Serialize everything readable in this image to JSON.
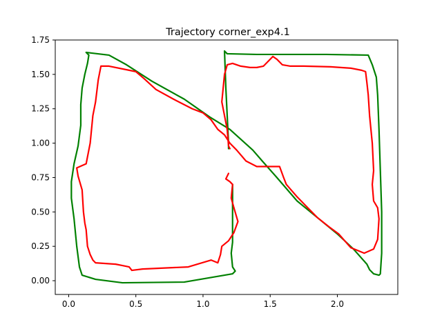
{
  "chart_data": {
    "type": "line",
    "title": "Trajectory corner_exp4.1",
    "xlabel": "",
    "ylabel": "",
    "xlim": [
      -0.1,
      2.45
    ],
    "ylim": [
      -0.1,
      1.75
    ],
    "xticks": [
      0.0,
      0.5,
      1.0,
      1.5,
      2.0
    ],
    "xtick_labels": [
      "0.0",
      "0.5",
      "1.0",
      "1.5",
      "2.0"
    ],
    "yticks": [
      0.0,
      0.25,
      0.5,
      0.75,
      1.0,
      1.25,
      1.5,
      1.75
    ],
    "ytick_labels": [
      "0.00",
      "0.25",
      "0.50",
      "0.75",
      "1.00",
      "1.25",
      "1.50",
      "1.75"
    ],
    "grid": false,
    "series": [
      {
        "color": "#008000",
        "points": [
          [
            1.22,
            0.7
          ],
          [
            1.22,
            0.28
          ],
          [
            1.21,
            0.2
          ],
          [
            1.22,
            0.1
          ],
          [
            1.24,
            0.07
          ],
          [
            1.22,
            0.05
          ],
          [
            0.86,
            -0.01
          ],
          [
            0.4,
            -0.015
          ],
          [
            0.2,
            0.01
          ],
          [
            0.1,
            0.04
          ],
          [
            0.08,
            0.1
          ],
          [
            0.06,
            0.25
          ],
          [
            0.04,
            0.45
          ],
          [
            0.02,
            0.6
          ],
          [
            0.02,
            0.72
          ],
          [
            0.04,
            0.85
          ],
          [
            0.07,
            0.98
          ],
          [
            0.09,
            1.13
          ],
          [
            0.09,
            1.28
          ],
          [
            0.1,
            1.4
          ],
          [
            0.12,
            1.5
          ],
          [
            0.14,
            1.58
          ],
          [
            0.15,
            1.64
          ],
          [
            0.13,
            1.66
          ],
          [
            0.17,
            1.655
          ],
          [
            0.3,
            1.64
          ],
          [
            0.43,
            1.57
          ],
          [
            0.62,
            1.45
          ],
          [
            0.86,
            1.32
          ],
          [
            1.05,
            1.19
          ],
          [
            1.2,
            1.1
          ],
          [
            1.37,
            0.95
          ],
          [
            1.45,
            0.86
          ],
          [
            1.55,
            0.75
          ],
          [
            1.7,
            0.58
          ],
          [
            1.85,
            0.46
          ],
          [
            2.0,
            0.34
          ],
          [
            2.12,
            0.23
          ],
          [
            2.22,
            0.12
          ],
          [
            2.24,
            0.08
          ],
          [
            2.27,
            0.05
          ],
          [
            2.31,
            0.04
          ],
          [
            2.32,
            0.05
          ],
          [
            2.33,
            0.2
          ],
          [
            2.33,
            0.5
          ],
          [
            2.32,
            0.8
          ],
          [
            2.31,
            1.1
          ],
          [
            2.3,
            1.35
          ],
          [
            2.29,
            1.48
          ],
          [
            2.26,
            1.57
          ],
          [
            2.23,
            1.64
          ],
          [
            1.92,
            1.645
          ],
          [
            1.4,
            1.645
          ],
          [
            1.18,
            1.65
          ],
          [
            1.16,
            1.67
          ],
          [
            1.17,
            1.4
          ],
          [
            1.18,
            1.2
          ],
          [
            1.19,
            1.0
          ],
          [
            1.19,
            0.96
          ]
        ]
      },
      {
        "color": "#ff0000",
        "points": [
          [
            1.22,
            0.7
          ],
          [
            1.21,
            0.6
          ],
          [
            1.23,
            0.53
          ],
          [
            1.26,
            0.43
          ],
          [
            1.23,
            0.35
          ],
          [
            1.19,
            0.29
          ],
          [
            1.14,
            0.25
          ],
          [
            1.13,
            0.19
          ],
          [
            1.11,
            0.13
          ],
          [
            1.06,
            0.15
          ],
          [
            0.89,
            0.1
          ],
          [
            0.55,
            0.085
          ],
          [
            0.47,
            0.075
          ],
          [
            0.45,
            0.1
          ],
          [
            0.4,
            0.11
          ],
          [
            0.35,
            0.12
          ],
          [
            0.2,
            0.13
          ],
          [
            0.18,
            0.15
          ],
          [
            0.16,
            0.19
          ],
          [
            0.14,
            0.25
          ],
          [
            0.13,
            0.37
          ],
          [
            0.12,
            0.42
          ],
          [
            0.11,
            0.5
          ],
          [
            0.1,
            0.66
          ],
          [
            0.07,
            0.76
          ],
          [
            0.06,
            0.82
          ],
          [
            0.13,
            0.85
          ],
          [
            0.16,
            1.0
          ],
          [
            0.18,
            1.2
          ],
          [
            0.2,
            1.3
          ],
          [
            0.22,
            1.46
          ],
          [
            0.24,
            1.56
          ],
          [
            0.3,
            1.56
          ],
          [
            0.45,
            1.53
          ],
          [
            0.5,
            1.52
          ],
          [
            0.56,
            1.47
          ],
          [
            0.65,
            1.39
          ],
          [
            0.78,
            1.32
          ],
          [
            0.92,
            1.25
          ],
          [
            1.0,
            1.22
          ],
          [
            1.06,
            1.17
          ],
          [
            1.11,
            1.1
          ],
          [
            1.16,
            1.06
          ],
          [
            1.2,
            1.0
          ],
          [
            1.25,
            0.95
          ],
          [
            1.32,
            0.87
          ],
          [
            1.4,
            0.83
          ],
          [
            1.57,
            0.83
          ],
          [
            1.6,
            0.75
          ],
          [
            1.62,
            0.7
          ],
          [
            1.7,
            0.61
          ],
          [
            1.75,
            0.56
          ],
          [
            1.85,
            0.46
          ],
          [
            1.94,
            0.39
          ],
          [
            2.01,
            0.34
          ],
          [
            2.1,
            0.24
          ],
          [
            2.2,
            0.2
          ],
          [
            2.27,
            0.23
          ],
          [
            2.3,
            0.3
          ],
          [
            2.31,
            0.45
          ],
          [
            2.3,
            0.53
          ],
          [
            2.27,
            0.58
          ],
          [
            2.26,
            0.7
          ],
          [
            2.27,
            0.8
          ],
          [
            2.26,
            1.0
          ],
          [
            2.24,
            1.2
          ],
          [
            2.23,
            1.35
          ],
          [
            2.22,
            1.44
          ],
          [
            2.21,
            1.52
          ],
          [
            2.18,
            1.53
          ],
          [
            2.1,
            1.545
          ],
          [
            1.95,
            1.555
          ],
          [
            1.75,
            1.56
          ],
          [
            1.65,
            1.56
          ],
          [
            1.59,
            1.57
          ],
          [
            1.55,
            1.61
          ],
          [
            1.52,
            1.63
          ],
          [
            1.45,
            1.56
          ],
          [
            1.4,
            1.55
          ],
          [
            1.35,
            1.55
          ],
          [
            1.28,
            1.56
          ],
          [
            1.22,
            1.58
          ],
          [
            1.18,
            1.57
          ],
          [
            1.16,
            1.5
          ],
          [
            1.14,
            1.3
          ],
          [
            1.16,
            1.2
          ],
          [
            1.18,
            1.1
          ],
          [
            1.19,
            0.98
          ],
          [
            1.2,
            0.96
          ]
        ]
      },
      {
        "color": "#ff0000",
        "points": [
          [
            1.19,
            0.78
          ],
          [
            1.17,
            0.74
          ],
          [
            1.2,
            0.72
          ],
          [
            1.22,
            0.7
          ]
        ]
      }
    ]
  }
}
